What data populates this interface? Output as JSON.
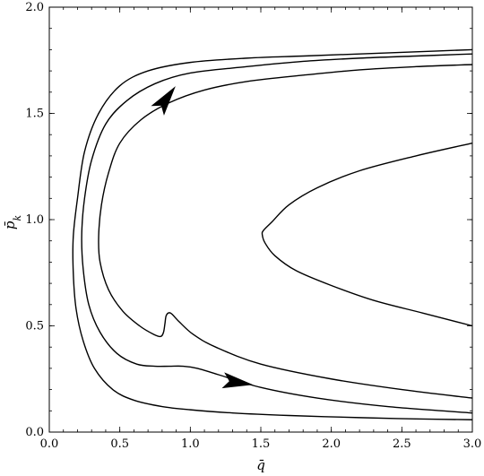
{
  "chart_data": {
    "type": "line",
    "title": "",
    "xlabel": "q̄",
    "ylabel_base": "p̄",
    "ylabel_sub": "k",
    "xlim": [
      0.0,
      3.0
    ],
    "ylim": [
      0.0,
      2.0
    ],
    "xticks": [
      "0.0",
      "0.5",
      "1.0",
      "1.5",
      "2.0",
      "2.5",
      "3.0"
    ],
    "yticks": [
      "0.0",
      "0.5",
      "1.0",
      "1.5",
      "2.0"
    ],
    "grid": false,
    "series": [
      {
        "x": [
          3.0,
          2.6,
          2.2,
          1.8,
          1.4,
          1.0,
          0.7,
          0.5,
          0.35,
          0.25,
          0.2,
          0.17,
          0.17,
          0.19,
          0.24,
          0.32,
          0.45,
          0.6,
          0.8,
          1.0,
          1.3,
          1.7,
          2.2,
          2.6,
          3.0
        ],
        "y": [
          1.8,
          1.79,
          1.78,
          1.77,
          1.76,
          1.74,
          1.7,
          1.63,
          1.5,
          1.32,
          1.1,
          0.92,
          0.75,
          0.58,
          0.43,
          0.3,
          0.2,
          0.15,
          0.12,
          0.105,
          0.09,
          0.078,
          0.068,
          0.062,
          0.058
        ]
      },
      {
        "x": [
          3.0,
          2.6,
          2.2,
          1.8,
          1.4,
          1.0,
          0.75,
          0.55,
          0.4,
          0.3,
          0.25,
          0.23,
          0.24,
          0.28,
          0.36,
          0.48,
          0.62,
          0.75,
          0.85,
          0.95,
          1.05,
          1.2,
          1.5,
          1.9,
          2.4,
          3.0
        ],
        "y": [
          1.78,
          1.77,
          1.76,
          1.745,
          1.72,
          1.69,
          1.64,
          1.56,
          1.45,
          1.28,
          1.1,
          0.93,
          0.77,
          0.6,
          0.47,
          0.37,
          0.32,
          0.31,
          0.31,
          0.31,
          0.3,
          0.27,
          0.21,
          0.16,
          0.12,
          0.09
        ]
      },
      {
        "x": [
          3.0,
          2.6,
          2.2,
          1.8,
          1.4,
          1.1,
          0.85,
          0.65,
          0.5,
          0.42,
          0.37,
          0.35,
          0.36,
          0.42,
          0.52,
          0.64,
          0.74,
          0.79,
          0.81,
          0.82,
          0.83,
          0.86,
          0.92,
          1.02,
          1.18,
          1.5,
          2.0,
          2.5,
          3.0
        ],
        "y": [
          1.73,
          1.72,
          1.705,
          1.68,
          1.65,
          1.61,
          1.55,
          1.47,
          1.36,
          1.22,
          1.07,
          0.92,
          0.8,
          0.67,
          0.57,
          0.5,
          0.46,
          0.45,
          0.47,
          0.51,
          0.55,
          0.56,
          0.52,
          0.46,
          0.4,
          0.32,
          0.25,
          0.2,
          0.16
        ]
      },
      {
        "x": [
          3.0,
          2.6,
          2.2,
          1.9,
          1.7,
          1.58,
          1.52,
          1.51,
          1.53,
          1.6,
          1.75,
          2.0,
          2.3,
          2.65,
          3.0
        ],
        "y": [
          1.36,
          1.3,
          1.23,
          1.15,
          1.07,
          0.99,
          0.95,
          0.93,
          0.89,
          0.83,
          0.76,
          0.69,
          0.62,
          0.56,
          0.5
        ]
      }
    ],
    "arrows": [
      {
        "x": 0.82,
        "y": 1.56,
        "dx": 1,
        "dy": 0.9
      },
      {
        "x": 1.32,
        "y": 0.235,
        "dx": 1,
        "dy": -0.1
      }
    ]
  }
}
